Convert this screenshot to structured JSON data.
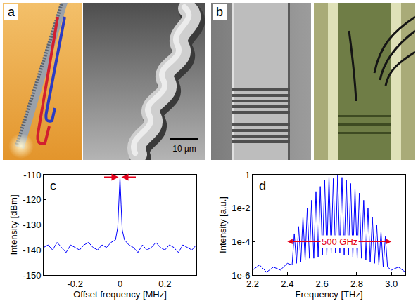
{
  "panels": [
    {
      "label": "a",
      "scale_bar": "10 µm"
    },
    {
      "label": "b"
    }
  ],
  "chart_data": [
    {
      "type": "line",
      "xlabel": "Offset frequency [MHz]",
      "ylabel": "Intensity [dBm]",
      "x": [
        -0.34,
        -0.32,
        -0.3,
        -0.28,
        -0.26,
        -0.24,
        -0.22,
        -0.2,
        -0.18,
        -0.16,
        -0.14,
        -0.12,
        -0.1,
        -0.08,
        -0.06,
        -0.04,
        -0.02,
        -0.01,
        -0.005,
        0,
        0.005,
        0.01,
        0.02,
        0.04,
        0.06,
        0.08,
        0.1,
        0.12,
        0.14,
        0.16,
        0.18,
        0.2,
        0.22,
        0.24,
        0.26,
        0.28,
        0.3,
        0.32,
        0.34
      ],
      "values": [
        -139,
        -138,
        -140,
        -137,
        -139,
        -141,
        -138,
        -139,
        -140,
        -138,
        -137,
        -139,
        -140,
        -138,
        -139,
        -137,
        -136,
        -131,
        -121,
        -111,
        -122,
        -132,
        -136,
        -138,
        -139,
        -141,
        -138,
        -140,
        -139,
        -137,
        -139,
        -140,
        -138,
        -139,
        -141,
        -138,
        -139,
        -140,
        -138
      ],
      "color": "#0000ff",
      "xlim": [
        -0.34,
        0.34
      ],
      "xticks": [
        -0.2,
        0,
        0.2
      ],
      "ylim": [
        -150,
        -110
      ],
      "yticks": [
        -150,
        -140,
        -130,
        -120,
        -110
      ],
      "grid": false,
      "annotations": [
        {
          "text": "c"
        },
        {
          "x": 0,
          "y": -111,
          "color": "#e3001b"
        }
      ]
    },
    {
      "type": "line",
      "xlabel": "Frequency [THz]",
      "ylabel": "Intensity [a.u.]",
      "x": [
        2.2,
        2.24,
        2.28,
        2.32,
        2.36,
        2.4,
        2.4275,
        2.44,
        2.4525,
        2.465,
        2.4775,
        2.49,
        2.5025,
        2.515,
        2.5275,
        2.54,
        2.5525,
        2.565,
        2.5775,
        2.59,
        2.6025,
        2.615,
        2.6275,
        2.64,
        2.6525,
        2.665,
        2.6775,
        2.69,
        2.7025,
        2.715,
        2.7275,
        2.74,
        2.7525,
        2.765,
        2.7775,
        2.79,
        2.8025,
        2.815,
        2.8275,
        2.84,
        2.8525,
        2.865,
        2.8775,
        2.89,
        2.9025,
        2.915,
        2.9275,
        2.94,
        2.9525,
        2.965,
        2.9775,
        3.0,
        3.04,
        3.08
      ],
      "values": [
        2e-06,
        4e-06,
        1.5e-06,
        3e-06,
        2e-06,
        5e-06,
        4e-06,
        0.0003,
        5e-06,
        0.0008,
        6e-06,
        0.003,
        8e-06,
        0.01,
        1e-05,
        0.03,
        1e-05,
        0.1,
        1.2e-05,
        0.2,
        1.5e-05,
        0.5,
        1.5e-05,
        0.8,
        2e-05,
        0.6,
        2e-05,
        0.9,
        2e-05,
        0.7,
        1.5e-05,
        0.5,
        1.5e-05,
        0.3,
        1.2e-05,
        0.15,
        1e-05,
        0.08,
        1e-05,
        0.03,
        8e-06,
        0.01,
        6e-06,
        0.003,
        5e-06,
        0.001,
        4e-06,
        0.0004,
        3e-06,
        0.0002,
        3e-06,
        2e-06,
        3e-06,
        1.5e-06
      ],
      "color": "#0000ff",
      "log": "y",
      "xlim": [
        2.2,
        3.08
      ],
      "xticks": [
        2.2,
        2.4,
        2.6,
        2.8,
        {
          "value": 3,
          "label": "3.0"
        }
      ],
      "ylim": [
        1e-06,
        1
      ],
      "yticks": [
        {
          "value": 1e-06,
          "label": "1e-6"
        },
        {
          "value": 0.0001,
          "label": "1e-4"
        },
        {
          "value": 0.01,
          "label": "1e-2"
        },
        1
      ],
      "grid": false,
      "annotations": [
        {
          "text": "d"
        },
        {
          "text": "500 GHz",
          "x": [
            2.4,
            3.0
          ],
          "y": 0.0001,
          "color": "#e3001b"
        }
      ]
    }
  ]
}
